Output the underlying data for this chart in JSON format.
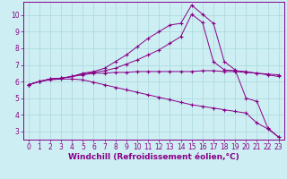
{
  "xlabel": "Windchill (Refroidissement éolien,°C)",
  "background_color": "#cdeef2",
  "line_color": "#880088",
  "grid_color": "#aad8dc",
  "xlim": [
    -0.5,
    23.5
  ],
  "ylim": [
    2.5,
    10.8
  ],
  "xticks": [
    0,
    1,
    2,
    3,
    4,
    5,
    6,
    7,
    8,
    9,
    10,
    11,
    12,
    13,
    14,
    15,
    16,
    17,
    18,
    19,
    20,
    21,
    22,
    23
  ],
  "yticks": [
    3,
    4,
    5,
    6,
    7,
    8,
    9,
    10
  ],
  "line1_x": [
    0,
    1,
    2,
    3,
    4,
    5,
    6,
    7,
    8,
    9,
    10,
    11,
    12,
    13,
    14,
    15,
    16,
    17,
    18,
    19,
    20,
    21,
    22,
    23
  ],
  "line1_y": [
    5.8,
    6.0,
    6.15,
    6.2,
    6.3,
    6.5,
    6.6,
    6.8,
    7.2,
    7.6,
    8.1,
    8.6,
    9.0,
    9.4,
    9.5,
    10.6,
    10.05,
    9.5,
    7.2,
    6.7,
    5.0,
    4.8,
    3.2,
    2.65
  ],
  "line2_x": [
    0,
    1,
    2,
    3,
    4,
    5,
    6,
    7,
    8,
    9,
    10,
    11,
    12,
    13,
    14,
    15,
    16,
    17,
    18,
    19,
    20,
    21,
    22,
    23
  ],
  "line2_y": [
    5.8,
    6.0,
    6.15,
    6.2,
    6.3,
    6.45,
    6.55,
    6.65,
    6.8,
    7.05,
    7.3,
    7.6,
    7.9,
    8.3,
    8.7,
    10.05,
    9.55,
    7.2,
    6.7,
    6.65,
    6.6,
    6.5,
    6.4,
    6.3
  ],
  "line3_x": [
    0,
    1,
    2,
    3,
    4,
    5,
    6,
    7,
    8,
    9,
    10,
    11,
    12,
    13,
    14,
    15,
    16,
    17,
    18,
    19,
    20,
    21,
    22,
    23
  ],
  "line3_y": [
    5.8,
    6.0,
    6.15,
    6.2,
    6.3,
    6.4,
    6.5,
    6.5,
    6.55,
    6.55,
    6.6,
    6.6,
    6.6,
    6.6,
    6.6,
    6.6,
    6.65,
    6.65,
    6.6,
    6.6,
    6.55,
    6.5,
    6.45,
    6.4
  ],
  "line4_x": [
    0,
    1,
    2,
    3,
    4,
    5,
    6,
    7,
    8,
    9,
    10,
    11,
    12,
    13,
    14,
    15,
    16,
    17,
    18,
    19,
    20,
    21,
    22,
    23
  ],
  "line4_y": [
    5.8,
    6.0,
    6.1,
    6.15,
    6.15,
    6.1,
    5.95,
    5.8,
    5.65,
    5.5,
    5.35,
    5.2,
    5.05,
    4.9,
    4.75,
    4.6,
    4.5,
    4.4,
    4.3,
    4.2,
    4.1,
    3.5,
    3.15,
    2.65
  ],
  "font_color": "#880088",
  "tick_label_size": 5.5,
  "xlabel_size": 6.5
}
